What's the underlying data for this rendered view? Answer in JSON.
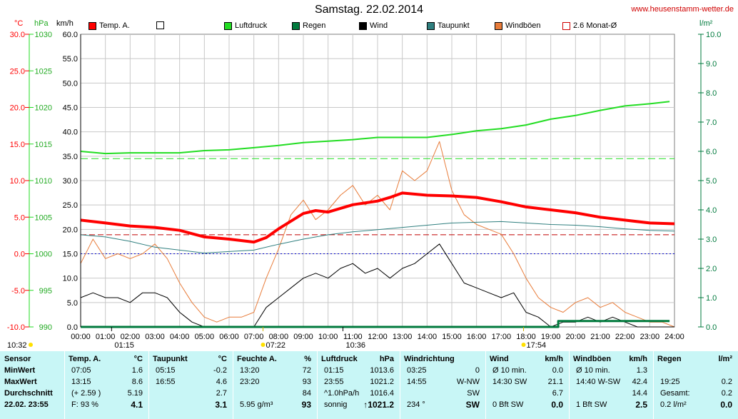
{
  "title": "Samstag. 22.02.2014",
  "site": "www.heusenstamm-wetter.de",
  "units": {
    "temp": "°C",
    "press": "hPa",
    "wind": "km/h",
    "rain": "l/m²"
  },
  "colors": {
    "temp": "#ff0000",
    "press": "#22dd22",
    "rain": "#007a3d",
    "wind": "#000000",
    "dew": "#2f7f7f",
    "gust": "#e87c3a",
    "avg": "#d00000"
  },
  "legend": [
    {
      "label": "Temp. A.",
      "color": "#ff0000"
    },
    {
      "label": "",
      "color": "#ffffff"
    },
    {
      "label": "Luftdruck",
      "color": "#22dd22"
    },
    {
      "label": "Regen",
      "color": "#007a3d"
    },
    {
      "label": "Wind",
      "color": "#000000"
    },
    {
      "label": "Taupunkt",
      "color": "#2f7f7f"
    },
    {
      "label": "Windböen",
      "color": "#e87c3a"
    },
    {
      "label": "2.6 Monat-Ø",
      "color": "#ffffff"
    }
  ],
  "time_markers": {
    "left": "10:32",
    "sunrise": "07:22",
    "sunset": "17:54",
    "m1": "01:15",
    "m2": "10:36"
  },
  "chart_data": {
    "type": "line",
    "x_ticks": [
      "00:00",
      "01:00",
      "02:00",
      "03:00",
      "04:00",
      "05:00",
      "06:00",
      "07:00",
      "08:00",
      "09:00",
      "10:00",
      "11:00",
      "12:00",
      "13:00",
      "14:00",
      "15:00",
      "16:00",
      "17:00",
      "18:00",
      "19:00",
      "20:00",
      "21:00",
      "22:00",
      "23:00",
      "24:00"
    ],
    "axes": {
      "temp": {
        "ticks": [
          "30.0",
          "25.0",
          "20.0",
          "15.0",
          "10.0",
          "5.0",
          "0.0",
          "-5.0",
          "-10.0"
        ]
      },
      "press": {
        "ticks": [
          "1030",
          "1025",
          "1020",
          "1015",
          "1010",
          "1005",
          "1000",
          "995",
          "990"
        ]
      },
      "wind": {
        "ticks": [
          "60.0",
          "55.0",
          "50.0",
          "45.0",
          "40.0",
          "35.0",
          "30.0",
          "25.0",
          "20.0",
          "15.0",
          "10.0",
          "5.0",
          "0.0"
        ]
      },
      "rain": {
        "ticks": [
          "10.0",
          "9.0",
          "8.0",
          "7.0",
          "6.0",
          "5.0",
          "4.0",
          "3.0",
          "2.0",
          "1.0",
          "0.0"
        ]
      }
    },
    "series": [
      {
        "name": "Temp. A.",
        "x": [
          0,
          1,
          2,
          3,
          4,
          5,
          6,
          7,
          7.5,
          8,
          9,
          9.5,
          10,
          11,
          12,
          12.5,
          13,
          14,
          15,
          16,
          17,
          18,
          19,
          20,
          21,
          22,
          23,
          24
        ],
        "y": [
          4.6,
          4.2,
          3.8,
          3.6,
          3.2,
          2.3,
          2.0,
          1.6,
          2.2,
          3.4,
          5.5,
          5.9,
          5.7,
          6.7,
          7.2,
          7.7,
          8.3,
          8.0,
          7.9,
          7.7,
          7.1,
          6.4,
          6.0,
          5.6,
          5.0,
          4.6,
          4.2,
          4.1
        ]
      },
      {
        "name": "Luftdruck",
        "x": [
          0,
          1,
          2,
          3,
          4,
          5,
          6,
          7,
          8,
          9,
          10,
          11,
          12,
          13,
          14,
          15,
          16,
          17,
          18,
          19,
          20,
          21,
          22,
          23,
          23.8
        ],
        "y": [
          1014.0,
          1013.7,
          1013.8,
          1013.8,
          1013.8,
          1014.1,
          1014.2,
          1014.5,
          1014.8,
          1015.2,
          1015.4,
          1015.6,
          1015.9,
          1015.9,
          1015.9,
          1016.3,
          1016.8,
          1017.1,
          1017.6,
          1018.4,
          1018.9,
          1019.6,
          1020.2,
          1020.5,
          1020.8
        ]
      },
      {
        "name": "Taupunkt",
        "x": [
          0,
          1,
          2,
          3,
          4,
          5,
          6,
          7,
          8,
          9,
          10,
          11,
          12,
          13,
          14,
          15,
          16,
          17,
          18,
          19,
          20,
          21,
          22,
          23,
          24
        ],
        "y": [
          2.6,
          2.3,
          1.7,
          0.9,
          0.5,
          0.1,
          0.3,
          0.5,
          1.3,
          2.0,
          2.6,
          3.0,
          3.3,
          3.6,
          3.9,
          4.2,
          4.3,
          4.4,
          4.2,
          4.0,
          3.9,
          3.7,
          3.4,
          3.2,
          3.1
        ]
      },
      {
        "name": "Wind",
        "x": [
          0,
          0.5,
          1,
          1.5,
          2,
          2.5,
          3,
          3.5,
          4,
          4.5,
          5,
          5.5,
          6,
          6.5,
          7,
          7.5,
          8,
          8.5,
          9,
          9.5,
          10,
          10.5,
          11,
          11.5,
          12,
          12.5,
          13,
          13.5,
          14,
          14.5,
          15,
          15.5,
          16,
          16.5,
          17,
          17.5,
          18,
          18.5,
          19,
          19.5,
          20,
          20.5,
          21,
          21.5,
          22,
          22.5,
          23,
          23.5,
          24
        ],
        "y": [
          6,
          7,
          6,
          6,
          5,
          7,
          7,
          6,
          3,
          1,
          0,
          0,
          0,
          0,
          0,
          4,
          6,
          8,
          10,
          11,
          10,
          12,
          13,
          11,
          12,
          10,
          12,
          13,
          15,
          17,
          13,
          9,
          8,
          7,
          6,
          7,
          3,
          2,
          0,
          1,
          1,
          2,
          1,
          2,
          1,
          0,
          0,
          0,
          0
        ]
      },
      {
        "name": "Windböen",
        "x": [
          0,
          0.5,
          1,
          1.5,
          2,
          2.5,
          3,
          3.5,
          4,
          4.5,
          5,
          5.5,
          6,
          6.5,
          7,
          7.5,
          8,
          8.5,
          9,
          9.5,
          10,
          10.5,
          11,
          11.5,
          12,
          12.5,
          13,
          13.5,
          14,
          14.5,
          15,
          15.5,
          16,
          16.5,
          17,
          17.5,
          18,
          18.5,
          19,
          19.5,
          20,
          20.5,
          21,
          21.5,
          22,
          22.5,
          23,
          23.5,
          24
        ],
        "y": [
          13,
          18,
          14,
          15,
          14,
          15,
          17,
          14,
          9,
          5,
          2,
          1,
          2,
          2,
          3,
          10,
          16,
          23,
          26,
          22,
          24,
          27,
          29,
          25,
          27,
          24,
          32,
          30,
          32,
          38,
          28,
          23,
          21,
          20,
          19,
          15,
          10,
          6,
          4,
          3,
          5,
          6,
          4,
          5,
          3,
          2,
          1,
          1,
          0
        ]
      },
      {
        "name": "Regen",
        "x": [
          0,
          19.3,
          19.3,
          23.8
        ],
        "y": [
          0,
          0,
          0.2,
          0.2
        ]
      }
    ],
    "reference_lines": [
      {
        "name": "2.6 Monat-Ø",
        "axis": "temp",
        "value": 2.6
      },
      {
        "name": "0 °C",
        "axis": "temp",
        "value": 0.0
      },
      {
        "name": "Luftdruck-Ref",
        "axis": "press",
        "value": 1013.0
      }
    ],
    "scales": {
      "temp": [
        -10,
        30
      ],
      "press": [
        990,
        1030
      ],
      "wind": [
        0,
        60
      ],
      "rain": [
        0,
        10
      ]
    }
  },
  "stats": {
    "headers": [
      "Sensor",
      "Temp. A.",
      "°C",
      "Taupunkt",
      "°C",
      "Feuchte A.",
      "%",
      "Luftdruck",
      "hPa",
      "Windrichtung",
      "Wind",
      "km/h",
      "Windböen",
      "km/h",
      "Regen",
      "l/m²"
    ],
    "rowlabels": [
      "MinWert",
      "MaxWert",
      "Durchschnitt",
      "22.02. 23:55"
    ],
    "temp": [
      [
        "07:05",
        "1.6"
      ],
      [
        "13:15",
        "8.6"
      ],
      [
        "(+ 2.59 )",
        "5.19"
      ],
      [
        "F: 93 %",
        "4.1"
      ]
    ],
    "dew": [
      [
        "05:15",
        "-0.2"
      ],
      [
        "16:55",
        "4.6"
      ],
      [
        "",
        "2.7"
      ],
      [
        "",
        "3.1"
      ]
    ],
    "hum": [
      [
        "13:20",
        "72"
      ],
      [
        "23:20",
        "93"
      ],
      [
        "",
        "84"
      ],
      [
        "5.95 g/m³",
        "93"
      ]
    ],
    "press": [
      [
        "01:15",
        "1013.6"
      ],
      [
        "23:55",
        "1021.2"
      ],
      [
        "^1.0hPa/h",
        "1016.4"
      ],
      [
        "sonnig",
        "↑1021.2"
      ]
    ],
    "dir": [
      [
        "03:25",
        "0"
      ],
      [
        "14:55",
        "W-NW"
      ],
      [
        "",
        "SW"
      ],
      [
        "234 °",
        "SW"
      ]
    ],
    "wind": [
      [
        "Ø 10 min.",
        "0.0"
      ],
      [
        "14:30  SW",
        "21.1"
      ],
      [
        "",
        "6.7"
      ],
      [
        "0 Bft SW",
        "0.0"
      ]
    ],
    "gust": [
      [
        "Ø 10 min.",
        "1.3"
      ],
      [
        "14:40  W-SW",
        "42.4"
      ],
      [
        "",
        "14.4"
      ],
      [
        "1 Bft SW",
        "2.5"
      ]
    ],
    "rain": [
      [
        "",
        ""
      ],
      [
        "19:25",
        "0.2"
      ],
      [
        "Gesamt:",
        "0.2"
      ],
      [
        "0.2 l/m²",
        "0.0"
      ]
    ]
  }
}
